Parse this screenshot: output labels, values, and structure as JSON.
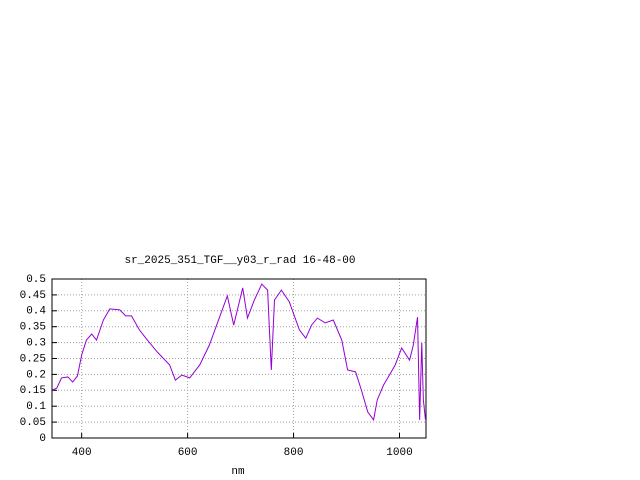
{
  "chart_data": {
    "type": "line",
    "title": "sr_2025_351_TGF__y03_r_rad 16-48-00",
    "x_label": "nm",
    "x": [
      345,
      353,
      362,
      374,
      383,
      392,
      400,
      409,
      419,
      428,
      441,
      453,
      472,
      483,
      494,
      509,
      524,
      543,
      566,
      577,
      589,
      604,
      623,
      641,
      657,
      675,
      687,
      704,
      713,
      726,
      740,
      751,
      758,
      764,
      777,
      792,
      811,
      823,
      834,
      845,
      860,
      875,
      891,
      902,
      917,
      928,
      940,
      951,
      958,
      970,
      981,
      992,
      1004,
      1019,
      1026,
      1034,
      1038,
      1042,
      1045,
      1049
    ],
    "series": [
      {
        "name": "sr_2025_351_TGF__y03_r_rad 16-48-00",
        "color": "#9400d3",
        "values": [
          0.151,
          0.157,
          0.189,
          0.192,
          0.176,
          0.195,
          0.261,
          0.308,
          0.327,
          0.308,
          0.371,
          0.406,
          0.403,
          0.384,
          0.384,
          0.34,
          0.308,
          0.27,
          0.23,
          0.182,
          0.198,
          0.189,
          0.23,
          0.292,
          0.365,
          0.447,
          0.355,
          0.472,
          0.377,
          0.434,
          0.484,
          0.465,
          0.214,
          0.434,
          0.465,
          0.428,
          0.34,
          0.314,
          0.355,
          0.377,
          0.362,
          0.371,
          0.308,
          0.214,
          0.208,
          0.151,
          0.082,
          0.057,
          0.12,
          0.167,
          0.198,
          0.23,
          0.283,
          0.245,
          0.292,
          0.38,
          0.057,
          0.299,
          0.12,
          0.057
        ]
      }
    ],
    "xlim": [
      344,
      1050
    ],
    "ylim": [
      0,
      0.5
    ],
    "xticks": [
      400,
      600,
      800,
      1000
    ],
    "yticks": [
      0,
      0.05,
      0.1,
      0.15,
      0.2,
      0.25,
      0.3,
      0.35,
      0.4,
      0.45,
      0.5
    ],
    "grid": true
  }
}
